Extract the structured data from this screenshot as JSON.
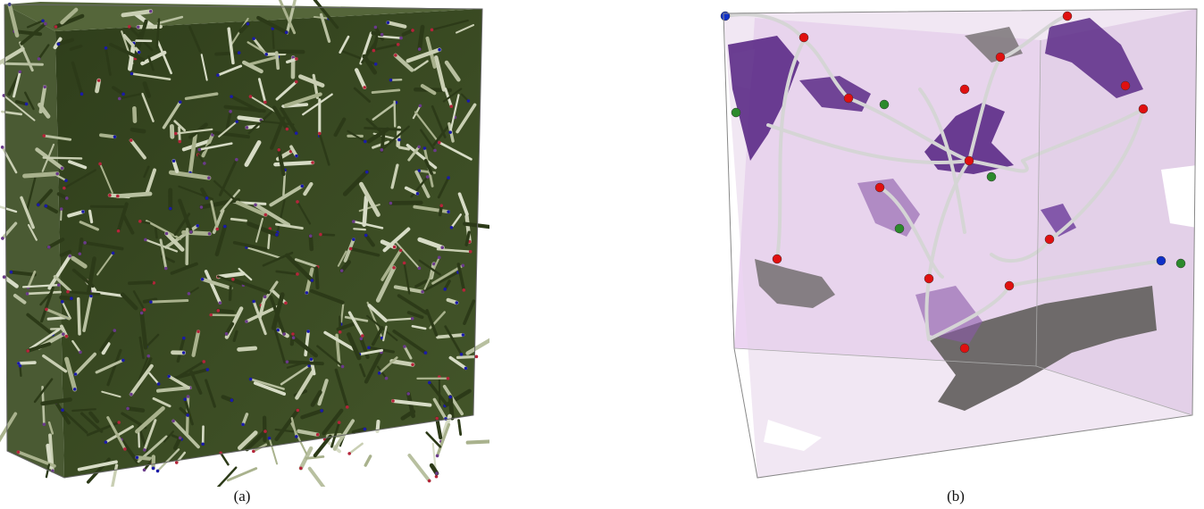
{
  "figure": {
    "panels": [
      {
        "id": "a",
        "label": "(a)",
        "description_kind": "fiber-network-volume"
      },
      {
        "id": "b",
        "label": "(b)",
        "description_kind": "segmented-pore-network-volume"
      }
    ]
  },
  "colors": {
    "fiber_dark": "#3f5326",
    "fiber_light": "#c9cfb3",
    "endpoint_blue": "#1a1aa8",
    "endpoint_red": "#b5243a",
    "endpoint_purple": "#6a3a8a",
    "volume_pink": "#e7c8ef",
    "region_purple": "#5b2a86",
    "region_gray": "#6f6a6d",
    "tube_gray": "#d9d9d9",
    "node_red": "#e01010",
    "node_green": "#2c8a2c",
    "node_blue": "#1030c8"
  }
}
